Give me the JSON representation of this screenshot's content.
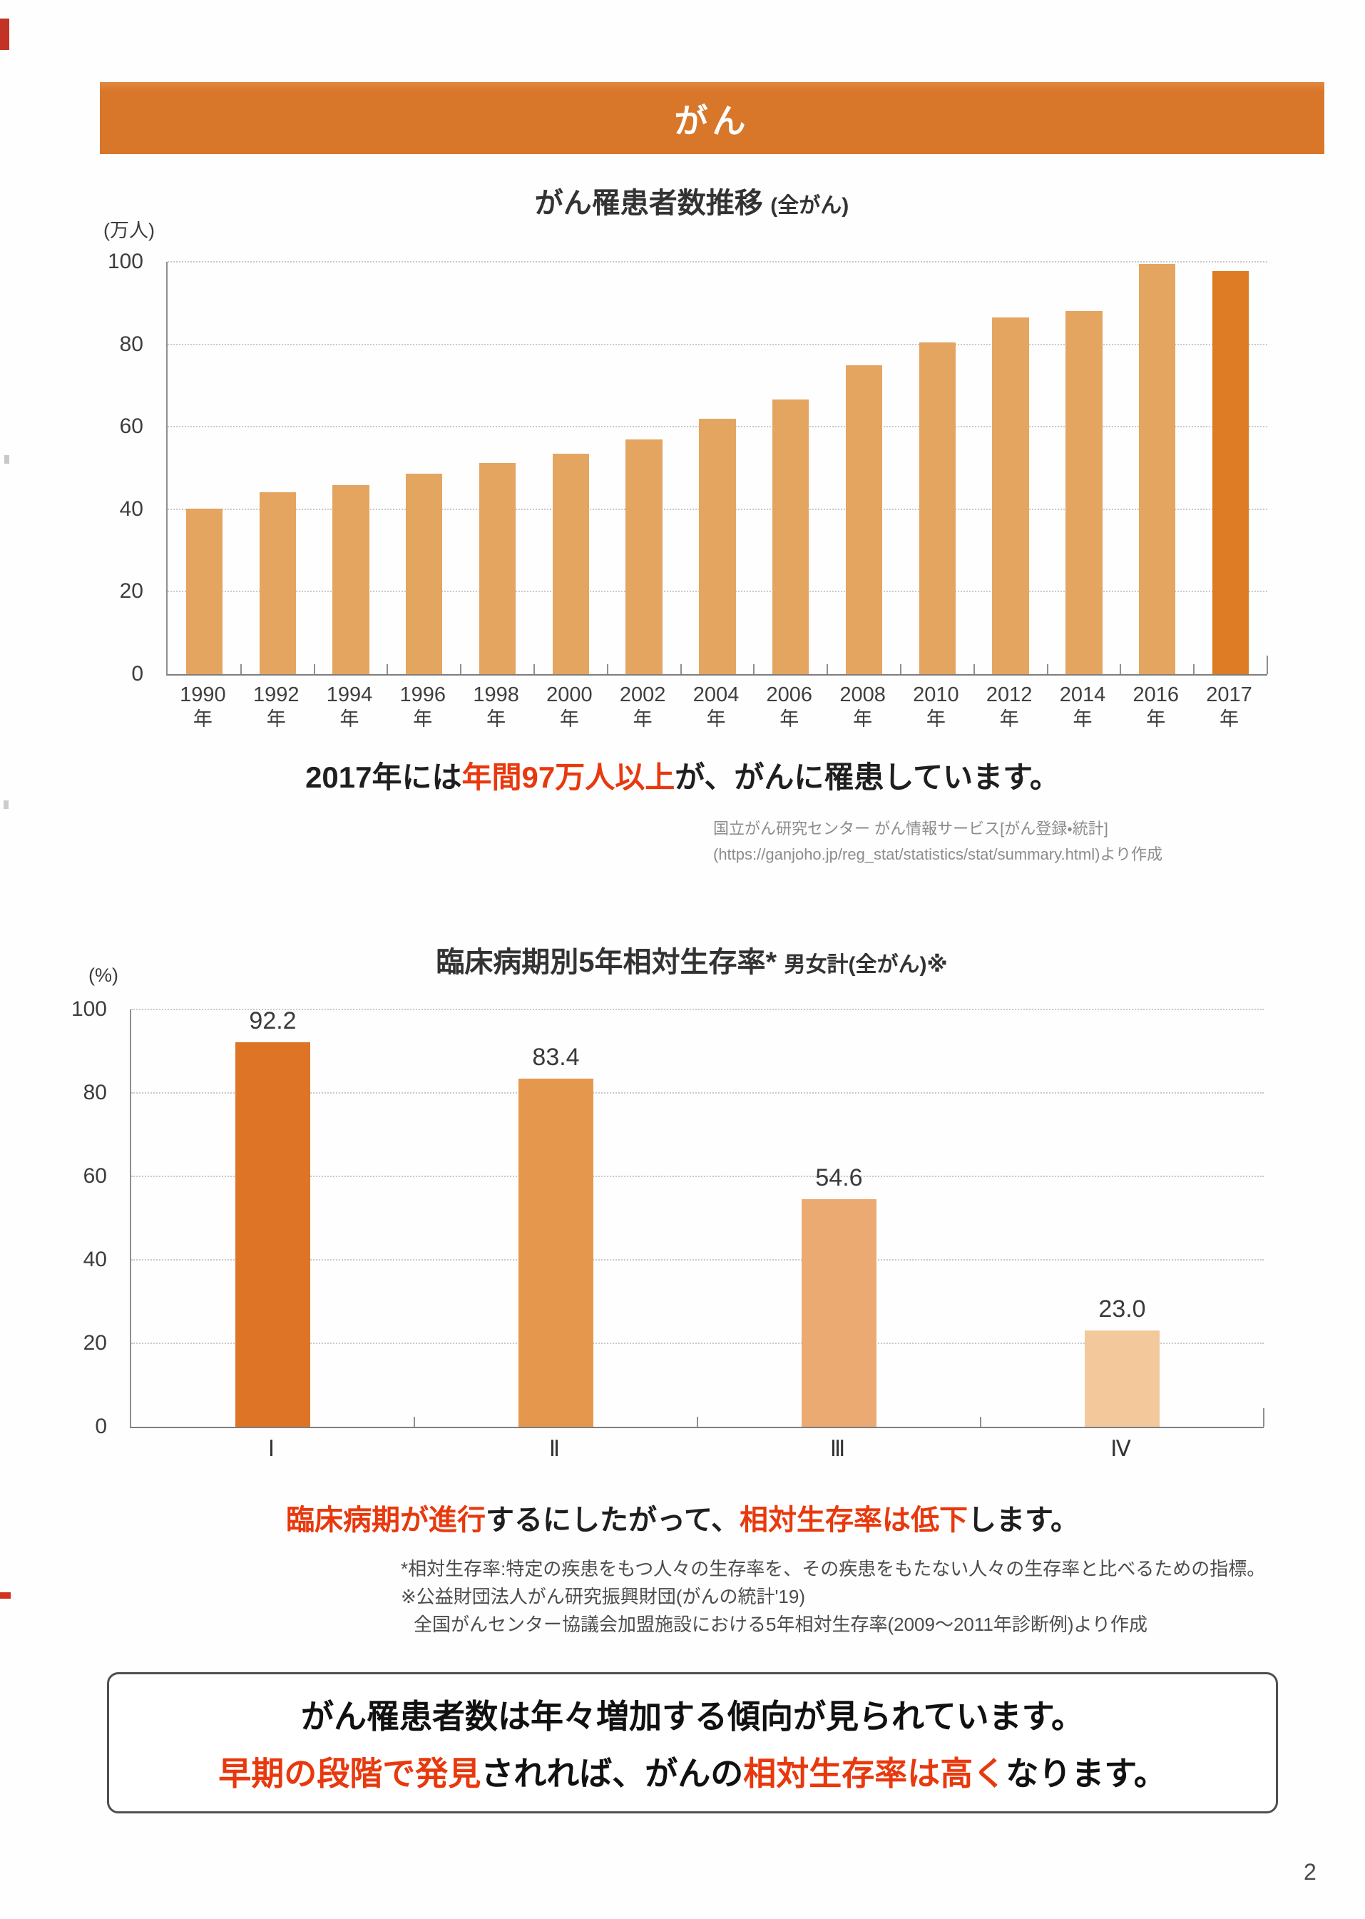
{
  "page": {
    "number": "2"
  },
  "banner": {
    "title": "がん",
    "color": "#d8762a"
  },
  "colors": {
    "banner": "#d8762a",
    "highlight_red": "#e8390e",
    "chart1_bar": "#e4a561",
    "chart1_bar_2017": "#de7b25",
    "axis": "#8f8f8f",
    "grid": "#c9c9c9"
  },
  "statement1": {
    "segments": [
      {
        "text": "2017年には",
        "red": false
      },
      {
        "text": "年間97万人以上",
        "red": true
      },
      {
        "text": "が、がんに罹患しています。",
        "red": false
      }
    ]
  },
  "source1": {
    "lines": [
      "国立がん研究センター がん情報サービス[がん登録・統計]",
      "(https://ganjoho.jp/reg_stat/statistics/stat/summary.html)より作成"
    ]
  },
  "statement2": {
    "segments": [
      {
        "text": "臨床病期が進行",
        "red": true
      },
      {
        "text": "するにしたがって、",
        "red": false
      },
      {
        "text": "相対生存率は低下",
        "red": true
      },
      {
        "text": "します。",
        "red": false
      }
    ]
  },
  "footnotes": {
    "lines": [
      "*相対生存率:特定の疾患をもつ人々の生存率を、その疾患をもたない人々の生存率と比べるための指標。",
      "※公益財団法人がん研究振興財団(がんの統計'19)",
      "全国がんセンター協議会加盟施設における5年相対生存率(2009〜2011年診断例)より作成"
    ]
  },
  "box": {
    "line1": "がん罹患者数は年々増加する傾向が見られています。",
    "line2_segments": [
      {
        "text": "早期の段階で発見",
        "red": true
      },
      {
        "text": "されれば、がんの",
        "red": false
      },
      {
        "text": "相対生存率は高く",
        "red": true
      },
      {
        "text": "なります。",
        "red": false
      }
    ]
  },
  "chart_data": [
    {
      "type": "bar",
      "title": "がん罹患者数推移",
      "title_note": "(全がん)",
      "unit": "(万人)",
      "categories": [
        "1990",
        "1992",
        "1994",
        "1996",
        "1998",
        "2000",
        "2002",
        "2004",
        "2006",
        "2008",
        "2010",
        "2012",
        "2014",
        "2016",
        "2017"
      ],
      "category_suffix": "年",
      "values": [
        40.1,
        44.2,
        45.9,
        48.7,
        51.2,
        53.4,
        57.0,
        62.0,
        66.6,
        74.9,
        80.5,
        86.5,
        88.1,
        99.5,
        97.7
      ],
      "ylim": [
        0,
        100
      ],
      "yticks": [
        0,
        20,
        40,
        60,
        80,
        100
      ],
      "grid": "horizontal-dotted",
      "legend": "none",
      "bar_colors": [
        "#e4a561",
        "#e4a561",
        "#e4a561",
        "#e4a561",
        "#e4a561",
        "#e4a561",
        "#e4a561",
        "#e4a561",
        "#e4a561",
        "#e4a561",
        "#e4a561",
        "#e4a561",
        "#e4a561",
        "#e4a561",
        "#de7b25"
      ],
      "show_values": false
    },
    {
      "type": "bar",
      "title": "臨床病期別5年相対生存率*",
      "title_note": "男女計(全がん)※",
      "unit": "(%)",
      "categories": [
        "Ⅰ",
        "Ⅱ",
        "Ⅲ",
        "Ⅳ"
      ],
      "values": [
        92.2,
        83.4,
        54.6,
        23.0
      ],
      "value_labels": [
        "92.2",
        "83.4",
        "54.6",
        "23.0"
      ],
      "ylim": [
        0,
        100
      ],
      "yticks": [
        0,
        20,
        40,
        60,
        80,
        100
      ],
      "grid": "horizontal-dotted",
      "legend": "none",
      "bar_colors": [
        "#de7526",
        "#e6974e",
        "#ebaa72",
        "#f3c99c"
      ],
      "show_values": true
    }
  ]
}
